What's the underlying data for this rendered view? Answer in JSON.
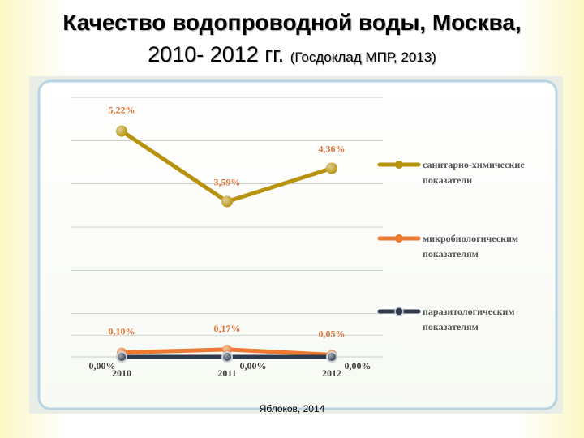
{
  "title": {
    "line1": "Качество водопроводной воды, Москва,",
    "line2_main": "2010- 2012 гг.",
    "line2_note": "(Госдоклад МПР, 2013)"
  },
  "credit": "Яблоков, 2014",
  "chart_data": {
    "type": "line",
    "categories": [
      "2010",
      "2011",
      "2012"
    ],
    "series": [
      {
        "name_lines": [
          "санитарно-химические",
          "показатели"
        ],
        "values": [
          5.22,
          3.59,
          4.36
        ],
        "labels": [
          "5,22%",
          "3,59%",
          "4,36%"
        ],
        "color": "#b8930f"
      },
      {
        "name_lines": [
          "микробиологическим",
          "показателям"
        ],
        "values": [
          0.1,
          0.17,
          0.05
        ],
        "labels": [
          "0,10%",
          "0,17%",
          "0,05%"
        ],
        "color": "#ec7a32"
      },
      {
        "name_lines": [
          "паразитологическим",
          "показателям"
        ],
        "values": [
          0.0,
          0.0,
          0.0
        ],
        "labels": [
          "0,00%",
          "0,00%",
          "0,00%"
        ],
        "color": "#2e3b4e"
      }
    ],
    "ylim": [
      0,
      6
    ],
    "grid": true,
    "legend": "right",
    "label_color": "#e0743a"
  }
}
